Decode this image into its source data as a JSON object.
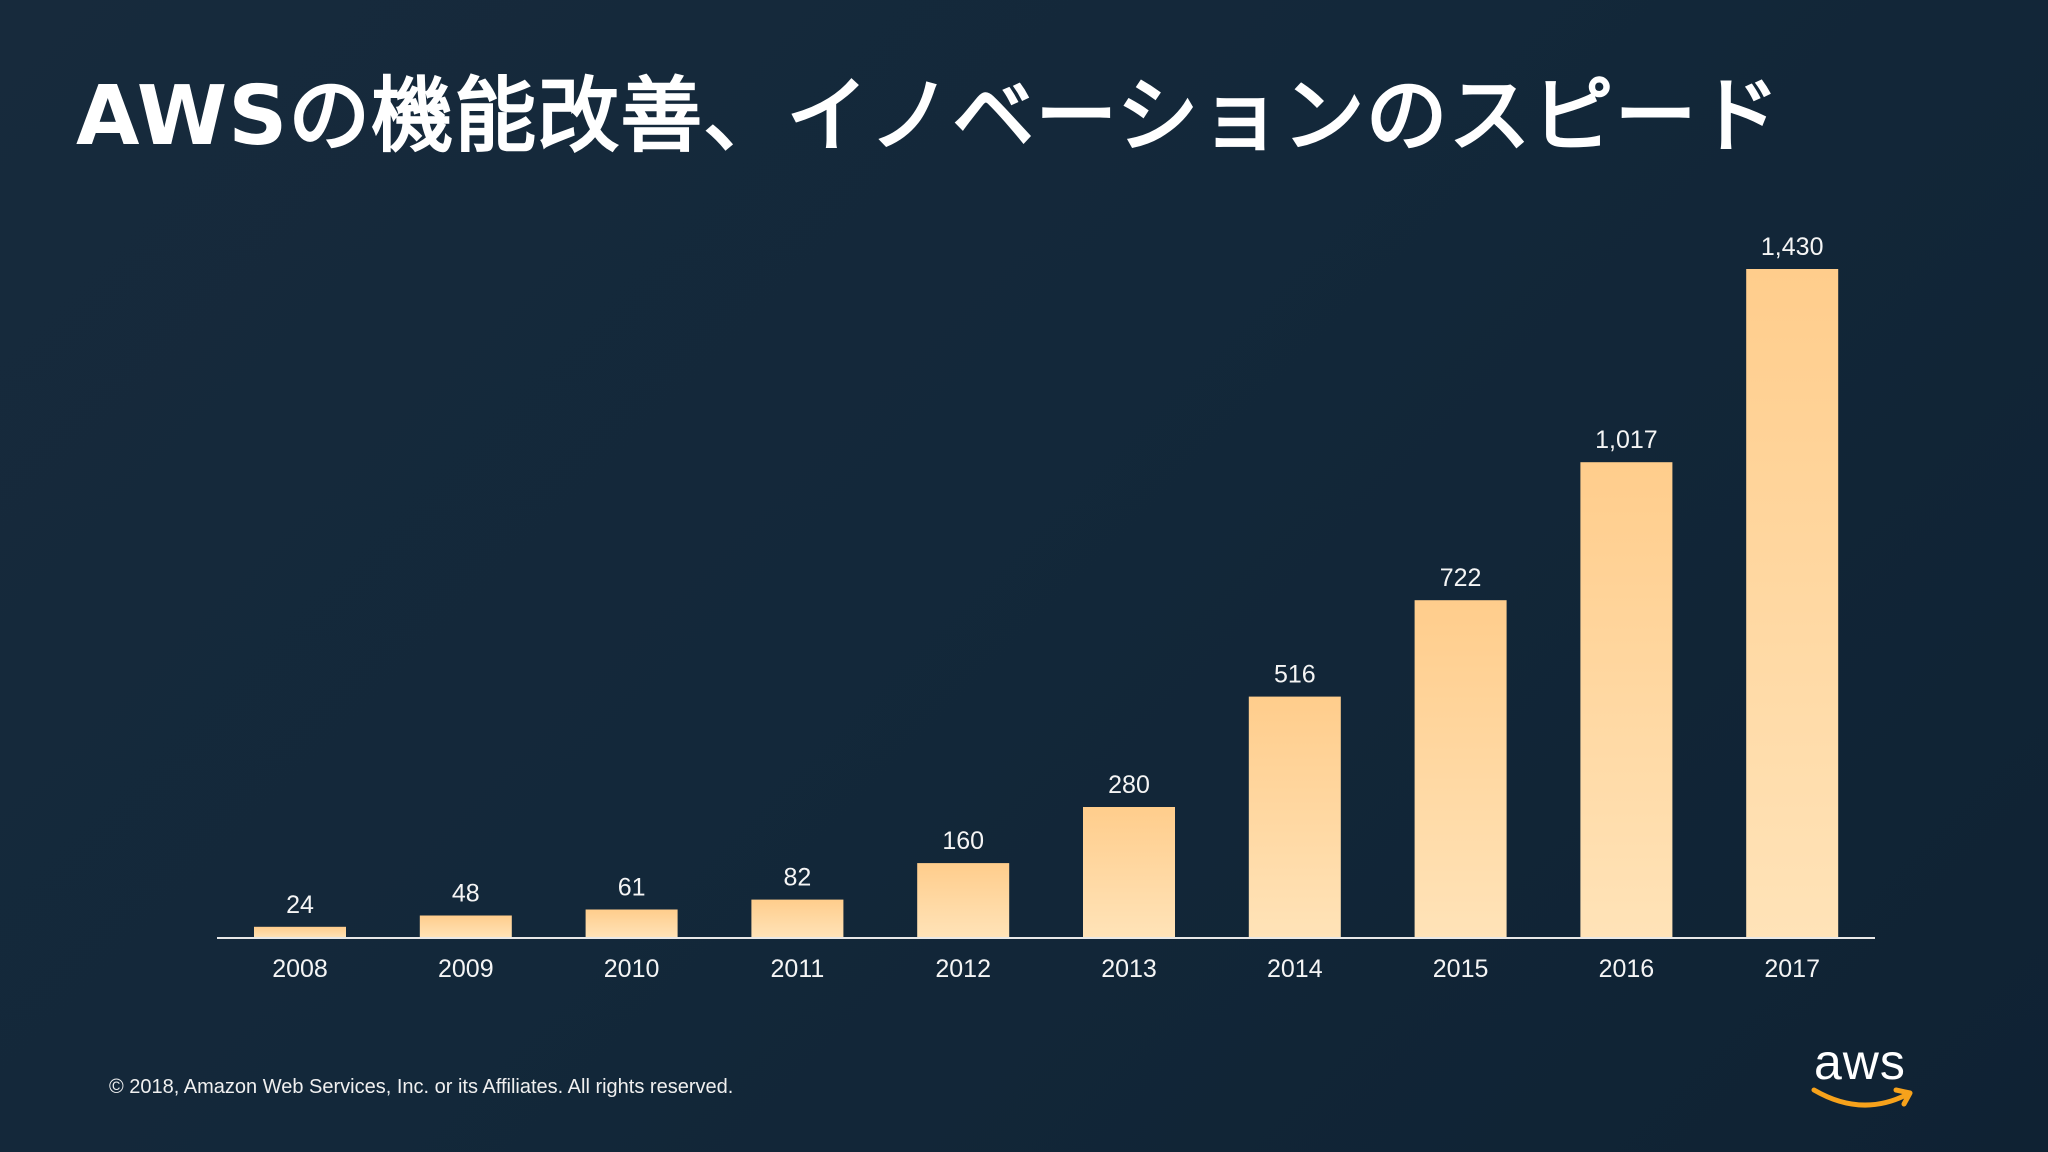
{
  "slide": {
    "title": "AWSの機能改善、イノベーションのスピード",
    "footer": "© 2018, Amazon Web Services, Inc. or its Affiliates. All rights reserved.",
    "logo_text": "aws"
  },
  "colors": {
    "background": "#152537",
    "bar_top": "#ffcd8c",
    "bar_bottom": "#ffe3b8",
    "axis": "#e8e8e8",
    "logo_smile": "#f7a21b"
  },
  "icons": {
    "logo": "aws-smile-logo"
  },
  "chart_data": {
    "type": "bar",
    "title": "AWSの機能改善、イノベーションのスピード",
    "xlabel": "",
    "ylabel": "",
    "categories": [
      "2008",
      "2009",
      "2010",
      "2011",
      "2012",
      "2013",
      "2014",
      "2015",
      "2016",
      "2017"
    ],
    "values": [
      24,
      48,
      61,
      82,
      160,
      280,
      516,
      722,
      1017,
      1430
    ],
    "value_labels": [
      "24",
      "48",
      "61",
      "82",
      "160",
      "280",
      "516",
      "722",
      "1,017",
      "1,430"
    ],
    "ylim": [
      0,
      1430
    ],
    "grid": false,
    "legend": "none"
  }
}
